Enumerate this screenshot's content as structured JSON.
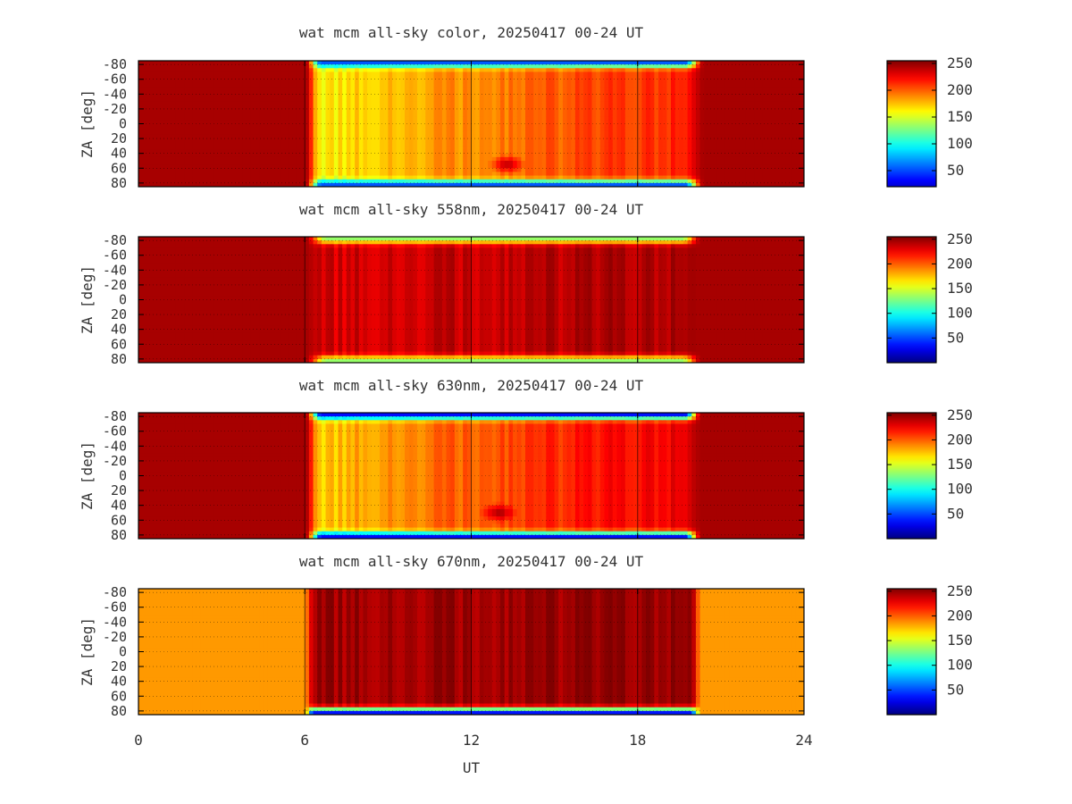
{
  "chart_data": [
    {
      "type": "heatmap",
      "title": "wat mcm all-sky color, 20250417 00-24 UT",
      "ylabel": "ZA [deg]",
      "xlabel": "",
      "xlim": [
        0,
        24
      ],
      "xticks": [
        0,
        6,
        12,
        18,
        24
      ],
      "show_x_tick_labels": false,
      "ylim": [
        -85,
        85
      ],
      "yticks": [
        -80,
        -60,
        -40,
        -20,
        0,
        20,
        40,
        60,
        80
      ],
      "ytick_labels": [
        "-80",
        "-60",
        "-40",
        "-20",
        "0",
        "20",
        "40",
        "60",
        "80"
      ],
      "colorbar": {
        "range": [
          20,
          255
        ],
        "ticks": [
          250,
          200,
          150,
          100,
          50
        ],
        "colormap": "jet"
      },
      "grid": true,
      "features": {
        "night_value": 245,
        "dusk_start_ut": 6.0,
        "day_start_ut": 6.6,
        "day_end_ut": 19.7,
        "dawn_end_ut": 20.4,
        "day_level_early": 155,
        "day_level_late": 215,
        "edge_min": 50,
        "dark_blob": {
          "ut": 13.3,
          "za": 55,
          "value": 245
        }
      }
    },
    {
      "type": "heatmap",
      "title": "wat mcm all-sky 558nm, 20250417 00-24 UT",
      "ylabel": "ZA [deg]",
      "xlabel": "",
      "xlim": [
        0,
        24
      ],
      "xticks": [
        0,
        6,
        12,
        18,
        24
      ],
      "show_x_tick_labels": false,
      "ylim": [
        -85,
        85
      ],
      "yticks": [
        -80,
        -60,
        -40,
        -20,
        0,
        20,
        40,
        60,
        80
      ],
      "ytick_labels": [
        "-80",
        "-60",
        "-40",
        "-20",
        "0",
        "20",
        "40",
        "60",
        "80"
      ],
      "colorbar": {
        "range": [
          0,
          255
        ],
        "ticks": [
          250,
          200,
          150,
          100,
          50
        ],
        "colormap": "jet"
      },
      "grid": true,
      "features": {
        "night_value": 245,
        "dusk_start_ut": 6.0,
        "day_start_ut": 6.8,
        "day_end_ut": 19.6,
        "dawn_end_ut": 20.3,
        "day_level_early": 232,
        "day_level_late": 244,
        "edge_min": 130
      }
    },
    {
      "type": "heatmap",
      "title": "wat mcm all-sky 630nm, 20250417 00-24 UT",
      "ylabel": "ZA [deg]",
      "xlabel": "",
      "xlim": [
        0,
        24
      ],
      "xticks": [
        0,
        6,
        12,
        18,
        24
      ],
      "show_x_tick_labels": false,
      "ylim": [
        -85,
        85
      ],
      "yticks": [
        -80,
        -60,
        -40,
        -20,
        0,
        20,
        40,
        60,
        80
      ],
      "ytick_labels": [
        "-80",
        "-60",
        "-40",
        "-20",
        "0",
        "20",
        "40",
        "60",
        "80"
      ],
      "colorbar": {
        "range": [
          0,
          255
        ],
        "ticks": [
          250,
          200,
          150,
          100,
          50
        ],
        "colormap": "jet"
      },
      "grid": true,
      "features": {
        "night_value": 245,
        "dusk_start_ut": 6.0,
        "day_start_ut": 6.6,
        "day_end_ut": 19.7,
        "dawn_end_ut": 20.3,
        "day_level_early": 165,
        "day_level_late": 228,
        "edge_min": 30,
        "dark_blob": {
          "ut": 13.0,
          "za": 50,
          "value": 250
        }
      }
    },
    {
      "type": "heatmap",
      "title": "wat mcm all-sky 670nm, 20250417 00-24 UT",
      "ylabel": "ZA [deg]",
      "xlabel": "UT",
      "xlim": [
        0,
        24
      ],
      "xticks": [
        0,
        6,
        12,
        18,
        24
      ],
      "xtick_labels": [
        "0",
        "6",
        "12",
        "18",
        "24"
      ],
      "show_x_tick_labels": true,
      "ylim": [
        -85,
        85
      ],
      "yticks": [
        -80,
        -60,
        -40,
        -20,
        0,
        20,
        40,
        60,
        80
      ],
      "ytick_labels": [
        "-80",
        "-60",
        "-40",
        "-20",
        "0",
        "20",
        "40",
        "60",
        "80"
      ],
      "colorbar": {
        "range": [
          0,
          255
        ],
        "ticks": [
          250,
          200,
          150,
          100,
          50
        ],
        "colormap": "jet"
      },
      "grid": true,
      "features": {
        "night_value": 185,
        "dusk_start_ut": 6.0,
        "day_start_ut": 6.3,
        "day_end_ut": 19.9,
        "dawn_end_ut": 20.3,
        "day_level_early": 246,
        "day_level_late": 250,
        "edge_min": 30,
        "bottom_edge_only": true
      }
    }
  ]
}
